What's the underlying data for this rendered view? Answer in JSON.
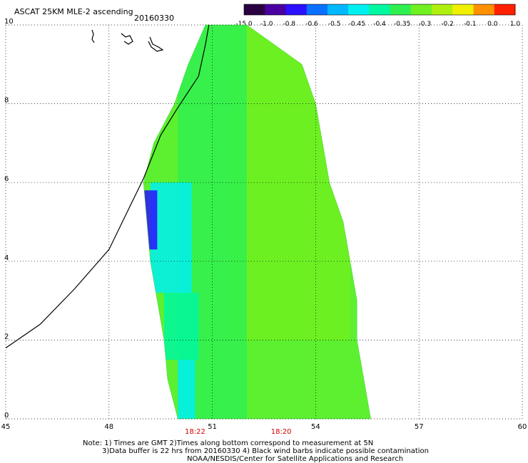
{
  "header": {
    "title": "ASCAT 25KM MLE-2 ascending",
    "date": "20160330"
  },
  "colorbar": {
    "labels": [
      "-15.0",
      "-1.0",
      "-0.8",
      "-0.6",
      "-0.5",
      "-0.45",
      "-0.4",
      "-0.35",
      "-0.3",
      "-0.2",
      "-0.1",
      "0.0",
      "1.0"
    ],
    "colors": [
      "#2a0040",
      "#4a00a0",
      "#2a10ff",
      "#0a70ff",
      "#00b8ff",
      "#00f0f0",
      "#00f8a0",
      "#30f050",
      "#70f020",
      "#b0f010",
      "#f0f000",
      "#ff9000",
      "#ff2000"
    ]
  },
  "footer": {
    "note_line1": "Note: 1) Times are GMT 2)Times along bottom correspond to measurement at 5N",
    "note_line2": "3)Data buffer is 22 hrs from 20160330 4) Black wind barbs indicate possible contamination",
    "credit": "NOAA/NESDIS/Center for Satellite Applications and Research"
  },
  "chart_data": {
    "type": "heatmap",
    "title": "ASCAT 25KM MLE-2 ascending 20160330",
    "x_ticks": [
      45,
      48,
      51,
      54,
      57,
      60
    ],
    "y_ticks": [
      0,
      2,
      4,
      6,
      8,
      10
    ],
    "xlim": [
      45,
      60
    ],
    "ylim": [
      0,
      10
    ],
    "grid": true,
    "time_labels": [
      {
        "x": 50.5,
        "text": "18:22"
      },
      {
        "x": 53.0,
        "text": "18:20"
      }
    ],
    "swath_edges": [
      {
        "lat": 10.0,
        "lon_west": 50.8,
        "lon_east": 52.0
      },
      {
        "lat": 9.0,
        "lon_west": 50.3,
        "lon_east": 53.6
      },
      {
        "lat": 8.0,
        "lon_west": 49.9,
        "lon_east": 54.0
      },
      {
        "lat": 7.0,
        "lon_west": 49.3,
        "lon_east": 54.2
      },
      {
        "lat": 6.0,
        "lon_west": 49.0,
        "lon_east": 54.4
      },
      {
        "lat": 5.0,
        "lon_west": 49.1,
        "lon_east": 54.8
      },
      {
        "lat": 4.0,
        "lon_west": 49.2,
        "lon_east": 55.0
      },
      {
        "lat": 3.0,
        "lon_west": 49.4,
        "lon_east": 55.2
      },
      {
        "lat": 2.0,
        "lon_west": 49.6,
        "lon_east": 55.2
      },
      {
        "lat": 1.0,
        "lon_west": 49.7,
        "lon_east": 55.4
      },
      {
        "lat": 0.0,
        "lon_west": 50.0,
        "lon_east": 55.6
      }
    ],
    "value_regions": [
      {
        "lat_min": 4.3,
        "lat_max": 5.8,
        "lon_min": 49.0,
        "lon_max": 49.4,
        "value": -0.8
      },
      {
        "lat_min": 3.2,
        "lat_max": 6.0,
        "lon_min": 49.2,
        "lon_max": 50.4,
        "value": -0.45
      },
      {
        "lat_min": 1.5,
        "lat_max": 3.2,
        "lon_min": 49.6,
        "lon_max": 50.6,
        "value": -0.4
      },
      {
        "lat_min": 0.0,
        "lat_max": 1.5,
        "lon_min": 50.0,
        "lon_max": 50.5,
        "value": -0.45
      },
      {
        "lat_min": 0.0,
        "lat_max": 10.0,
        "lon_min": 50.0,
        "lon_max": 52.0,
        "value": -0.35
      },
      {
        "lat_min": 2.0,
        "lat_max": 10.0,
        "lon_min": 51.5,
        "lon_max": 55.0,
        "value": -0.3
      }
    ],
    "coastline": [
      [
        45.0,
        1.8
      ],
      [
        46.0,
        2.4
      ],
      [
        47.0,
        3.3
      ],
      [
        48.0,
        4.3
      ],
      [
        48.5,
        5.2
      ],
      [
        49.0,
        6.1
      ],
      [
        49.5,
        7.2
      ],
      [
        50.0,
        7.9
      ],
      [
        50.6,
        8.7
      ],
      [
        50.8,
        9.5
      ],
      [
        50.9,
        10.0
      ]
    ]
  }
}
